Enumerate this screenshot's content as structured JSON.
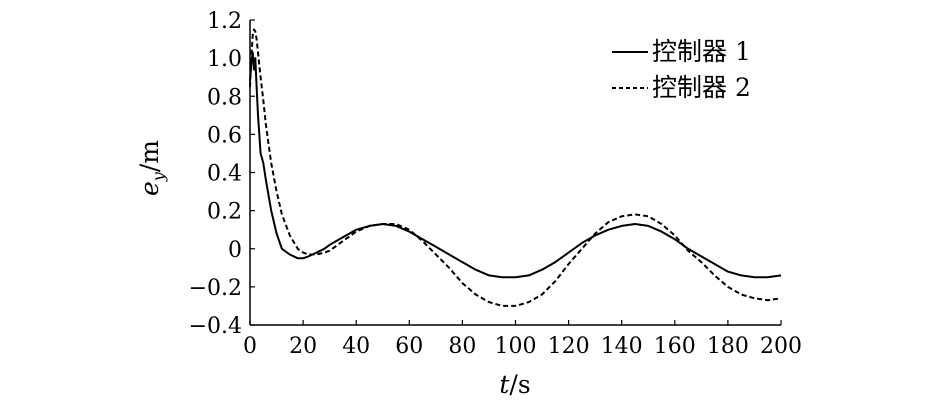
{
  "chart_data": {
    "type": "line",
    "title": "",
    "xlabel": {
      "var": "t",
      "unit": "/s"
    },
    "ylabel": {
      "var": "e",
      "sub": "y",
      "unit": "/m"
    },
    "xlim": [
      0,
      200
    ],
    "ylim": [
      -0.4,
      1.2
    ],
    "x_ticks": [
      0,
      20,
      40,
      60,
      80,
      100,
      120,
      140,
      160,
      180,
      200
    ],
    "x_tick_labels": [
      "0",
      "20",
      "40",
      "60",
      "80",
      "100",
      "120",
      "140",
      "160",
      "180",
      "200"
    ],
    "y_ticks": [
      1.2,
      1.0,
      0.8,
      0.6,
      0.4,
      0.2,
      0,
      -0.2,
      -0.4
    ],
    "y_tick_labels": [
      "1.2",
      "1.0",
      "0.8",
      "0.6",
      "0.4",
      "0.2",
      "0",
      "−0.2",
      "−0.4"
    ],
    "grid": false,
    "legend_position": "top-right",
    "series": [
      {
        "name": "控制器 1",
        "style": "solid",
        "color": "#000000",
        "x": [
          0,
          0.5,
          1,
          1.5,
          2,
          2.5,
          3,
          4,
          5,
          6,
          8,
          10,
          12,
          15,
          18,
          20,
          22,
          25,
          28,
          30,
          35,
          40,
          45,
          50,
          55,
          60,
          65,
          70,
          75,
          80,
          85,
          90,
          95,
          100,
          105,
          110,
          115,
          120,
          125,
          130,
          135,
          140,
          145,
          150,
          155,
          160,
          165,
          170,
          175,
          180,
          185,
          190,
          195,
          200
        ],
        "y": [
          0.88,
          0.97,
          1.03,
          0.94,
          1.0,
          0.85,
          0.7,
          0.5,
          0.45,
          0.36,
          0.2,
          0.08,
          0.0,
          -0.03,
          -0.05,
          -0.05,
          -0.04,
          -0.02,
          0.0,
          0.02,
          0.06,
          0.1,
          0.12,
          0.13,
          0.12,
          0.09,
          0.05,
          0.01,
          -0.03,
          -0.07,
          -0.11,
          -0.14,
          -0.15,
          -0.15,
          -0.14,
          -0.11,
          -0.07,
          -0.02,
          0.03,
          0.07,
          0.1,
          0.12,
          0.13,
          0.12,
          0.09,
          0.05,
          0.0,
          -0.04,
          -0.08,
          -0.12,
          -0.14,
          -0.15,
          -0.15,
          -0.14
        ]
      },
      {
        "name": "控制器 2",
        "style": "dashed",
        "color": "#000000",
        "x": [
          0,
          0.5,
          1,
          1.5,
          2,
          2.5,
          3,
          4,
          5,
          6,
          8,
          10,
          12,
          15,
          18,
          20,
          22,
          25,
          28,
          30,
          35,
          40,
          45,
          50,
          55,
          60,
          65,
          70,
          75,
          80,
          85,
          90,
          95,
          100,
          105,
          110,
          115,
          120,
          125,
          130,
          135,
          140,
          145,
          150,
          155,
          160,
          165,
          170,
          175,
          180,
          185,
          190,
          195,
          200
        ],
        "y": [
          0.85,
          1.0,
          1.12,
          1.15,
          1.14,
          1.1,
          1.03,
          0.9,
          0.78,
          0.65,
          0.45,
          0.3,
          0.18,
          0.07,
          0.0,
          -0.02,
          -0.03,
          -0.03,
          -0.02,
          -0.01,
          0.04,
          0.09,
          0.12,
          0.13,
          0.13,
          0.1,
          0.04,
          -0.03,
          -0.1,
          -0.18,
          -0.24,
          -0.28,
          -0.3,
          -0.3,
          -0.28,
          -0.24,
          -0.17,
          -0.08,
          0.0,
          0.08,
          0.14,
          0.17,
          0.18,
          0.17,
          0.13,
          0.07,
          -0.01,
          -0.07,
          -0.14,
          -0.2,
          -0.24,
          -0.26,
          -0.27,
          -0.26
        ]
      }
    ]
  }
}
